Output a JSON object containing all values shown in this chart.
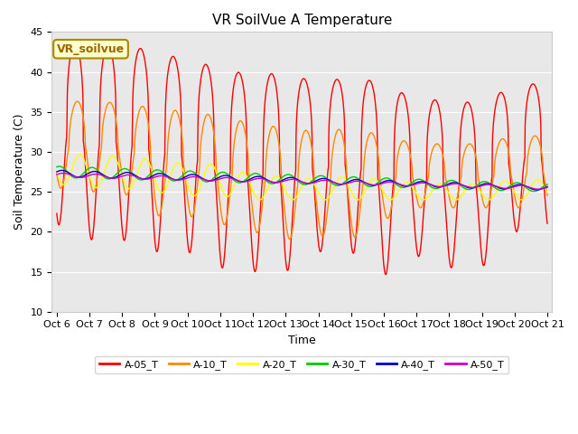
{
  "title": "VR SoilVue A Temperature",
  "ylabel": "Soil Temperature (C)",
  "xlabel": "Time",
  "ylim": [
    10,
    45
  ],
  "plot_bg_color": "#e8e8e8",
  "annotation": "VR_soilvue",
  "xtick_labels": [
    "Oct 6",
    "Oct 7",
    "Oct 8",
    "Oct 9",
    "Oct 10",
    "Oct 11",
    "Oct 12",
    "Oct 13",
    "Oct 14",
    "Oct 15",
    "Oct 16",
    "Oct 17",
    "Oct 18",
    "Oct 19",
    "Oct 20",
    "Oct 21"
  ],
  "legend_colors": [
    "#ff0000",
    "#ff8800",
    "#ffff00",
    "#00cc00",
    "#0000cc",
    "#cc00cc"
  ],
  "legend_labels": [
    "A-05_T",
    "A-10_T",
    "A-20_T",
    "A-30_T",
    "A-40_T",
    "A-50_T"
  ],
  "yticks": [
    10,
    15,
    20,
    25,
    30,
    35,
    40,
    45
  ],
  "title_fontsize": 11,
  "label_fontsize": 9,
  "tick_fontsize": 8
}
